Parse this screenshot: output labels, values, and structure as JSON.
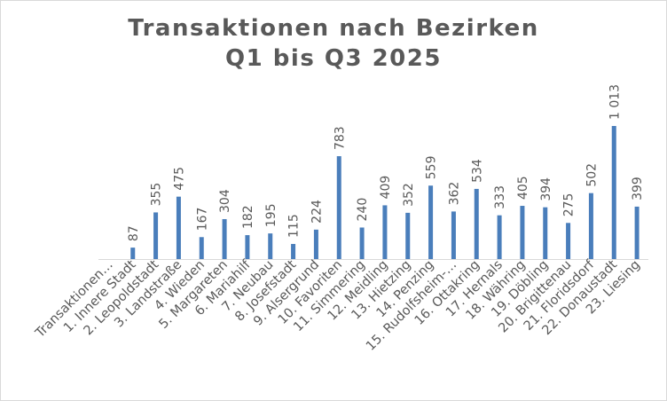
{
  "chart_data": {
    "type": "bar",
    "title_lines": [
      "Transaktionen nach Bezirken",
      "Q1 bis Q3 2025"
    ],
    "categories": [
      "Transaktionen…",
      "1. Innere Stadt",
      "2. Leopoldstadt",
      "3. Landstraße",
      "4. Wieden",
      "5. Margareten",
      "6. Mariahilf",
      "7. Neubau",
      "8. Josefstadt",
      "9. Alsergrund",
      "10. Favoriten",
      "11. Simmering",
      "12. Meidling",
      "13. Hietzing",
      "14. Penzing",
      "15. Rudolfsheim-…",
      "16. Ottakring",
      "17. Hernals",
      "18. Währing",
      "19. Döbling",
      "20. Brigittenau",
      "21. Floridsdorf",
      "22. Donaustadt",
      "23. Liesing"
    ],
    "values": [
      null,
      87,
      355,
      475,
      167,
      304,
      182,
      195,
      115,
      224,
      783,
      240,
      409,
      352,
      559,
      362,
      534,
      333,
      405,
      394,
      275,
      502,
      1013,
      399
    ],
    "data_labels": [
      "",
      "87",
      "355",
      "475",
      "167",
      "304",
      "182",
      "195",
      "115",
      "224",
      "783",
      "240",
      "409",
      "352",
      "559",
      "362",
      "534",
      "333",
      "405",
      "394",
      "275",
      "502",
      "1 013",
      "399"
    ],
    "series_color": "#4a7ebb",
    "ylim": [
      0,
      1200
    ],
    "grid": false,
    "legend": "none"
  }
}
